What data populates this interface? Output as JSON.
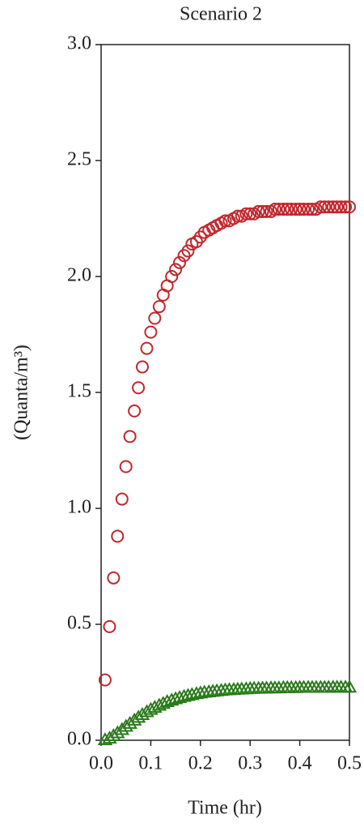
{
  "chart_data": {
    "type": "scatter",
    "title": "Scenario 2",
    "x_label": "Time (hr)",
    "y_label": "(Quanta/m³)",
    "x": [
      0.008,
      0.017,
      0.025,
      0.033,
      0.042,
      0.05,
      0.058,
      0.067,
      0.075,
      0.083,
      0.092,
      0.1,
      0.108,
      0.117,
      0.125,
      0.133,
      0.142,
      0.15,
      0.158,
      0.167,
      0.175,
      0.183,
      0.192,
      0.2,
      0.208,
      0.217,
      0.225,
      0.233,
      0.242,
      0.25,
      0.258,
      0.267,
      0.275,
      0.283,
      0.292,
      0.3,
      0.308,
      0.317,
      0.325,
      0.333,
      0.342,
      0.35,
      0.358,
      0.367,
      0.375,
      0.383,
      0.392,
      0.4,
      0.408,
      0.417,
      0.425,
      0.433,
      0.442,
      0.45,
      0.458,
      0.467,
      0.475,
      0.483,
      0.492,
      0.5
    ],
    "series": [
      {
        "marker": "circle",
        "color": "#c1272d",
        "values": [
          0.26,
          0.49,
          0.7,
          0.88,
          1.04,
          1.18,
          1.31,
          1.42,
          1.52,
          1.61,
          1.69,
          1.76,
          1.82,
          1.87,
          1.92,
          1.96,
          2.0,
          2.03,
          2.06,
          2.09,
          2.11,
          2.14,
          2.15,
          2.17,
          2.19,
          2.2,
          2.21,
          2.22,
          2.23,
          2.24,
          2.24,
          2.25,
          2.26,
          2.26,
          2.27,
          2.27,
          2.27,
          2.28,
          2.28,
          2.28,
          2.28,
          2.29,
          2.29,
          2.29,
          2.29,
          2.29,
          2.29,
          2.29,
          2.29,
          2.29,
          2.29,
          2.29,
          2.3,
          2.3,
          2.3,
          2.3,
          2.3,
          2.3,
          2.3,
          2.3
        ]
      },
      {
        "marker": "triangle",
        "color": "#2a7a1b",
        "values": [
          0.003,
          0.01,
          0.021,
          0.033,
          0.047,
          0.061,
          0.074,
          0.088,
          0.1,
          0.112,
          0.124,
          0.134,
          0.143,
          0.152,
          0.16,
          0.168,
          0.174,
          0.18,
          0.185,
          0.19,
          0.194,
          0.198,
          0.202,
          0.205,
          0.208,
          0.21,
          0.212,
          0.214,
          0.216,
          0.218,
          0.219,
          0.22,
          0.221,
          0.222,
          0.223,
          0.224,
          0.225,
          0.225,
          0.226,
          0.226,
          0.227,
          0.227,
          0.227,
          0.228,
          0.228,
          0.228,
          0.228,
          0.229,
          0.229,
          0.229,
          0.229,
          0.229,
          0.229,
          0.229,
          0.229,
          0.23,
          0.23,
          0.23,
          0.23,
          0.23
        ]
      }
    ],
    "xlim": [
      0,
      0.5
    ],
    "xticks": [
      {
        "value": 0,
        "label": "0.0"
      },
      0.1,
      0.2,
      0.3,
      0.4,
      0.5
    ],
    "ylim": [
      0,
      3
    ],
    "yticks": [
      {
        "value": 0,
        "label": "0.0"
      },
      0.5,
      {
        "value": 1,
        "label": "1.0"
      },
      1.5,
      {
        "value": 2,
        "label": "2.0"
      },
      2.5,
      {
        "value": 3,
        "label": "3.0"
      }
    ]
  }
}
